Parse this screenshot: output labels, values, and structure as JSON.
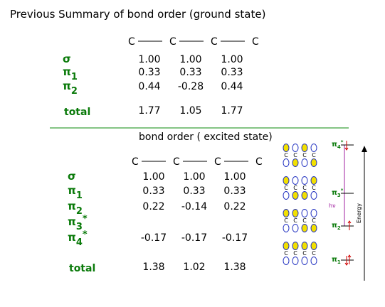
{
  "title": "Previous Summary of bond order (ground state)",
  "ground": {
    "chain": [
      "C",
      "C",
      "C",
      "C"
    ],
    "rows": [
      {
        "label": {
          "base": "σ"
        },
        "values": [
          "1.00",
          "1.00",
          "1.00"
        ]
      },
      {
        "label": {
          "base": "π",
          "sub": "1"
        },
        "values": [
          "0.33",
          "0.33",
          "0.33"
        ]
      },
      {
        "label": {
          "base": "π",
          "sub": "2"
        },
        "values": [
          "0.44",
          "-0.28",
          "0.44"
        ]
      }
    ],
    "total": {
      "label": "total",
      "values": [
        "1.77",
        "1.05",
        "1.77"
      ]
    }
  },
  "excited": {
    "heading": "bond order ( excited state)",
    "chain": [
      "C",
      "C",
      "C",
      "C"
    ],
    "rows": [
      {
        "label": {
          "base": "σ"
        },
        "values": [
          "1.00",
          "1.00",
          "1.00"
        ]
      },
      {
        "label": {
          "base": "π",
          "sub": "1"
        },
        "values": [
          "0.33",
          "0.33",
          "0.33"
        ]
      },
      {
        "label": {
          "base": "π",
          "sub": "2"
        },
        "values": [
          "0.22",
          "-0.14",
          "0.22"
        ]
      },
      {
        "label": {
          "base": "π",
          "sub": "3",
          "sup": "*"
        }
      },
      {
        "label": {
          "base": "π",
          "sub": "4",
          "sup": "*"
        },
        "values": [
          "-0.17",
          "-0.17",
          "-0.17"
        ]
      }
    ],
    "total": {
      "label": "total",
      "values": [
        "1.38",
        "1.02",
        "1.38"
      ]
    }
  },
  "diagram": {
    "atom": "C",
    "levels": [
      {
        "base": "π",
        "sub": "4",
        "sup": "*"
      },
      {
        "base": "π",
        "sub": "3",
        "sup": "*"
      },
      {
        "base": "π",
        "sub": "2"
      },
      {
        "base": "π",
        "sub": "1"
      }
    ],
    "photon": "hν",
    "axis": "Energy"
  }
}
